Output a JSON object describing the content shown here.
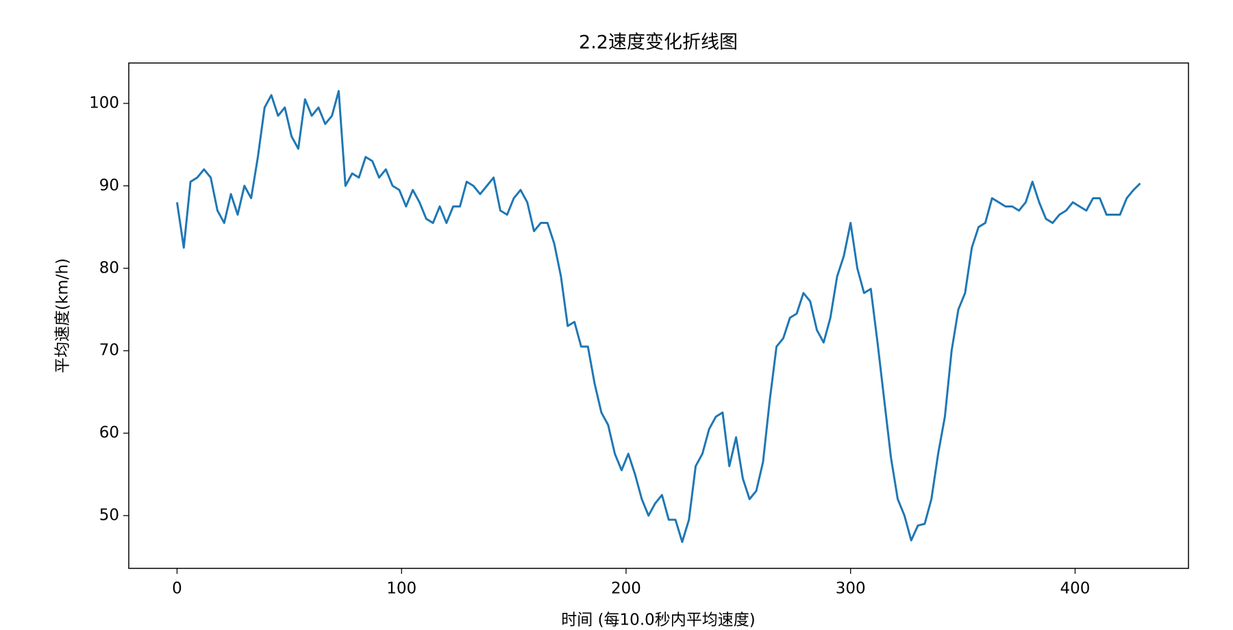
{
  "chart_data": {
    "type": "line",
    "title": "2.2速度变化折线图",
    "x_label": "时间 (每10.0秒内平均速度)",
    "y_label": "平均速度(km/h)",
    "color": "#1f77b4",
    "x": [
      0,
      3,
      6,
      9,
      12,
      15,
      18,
      21,
      24,
      27,
      30,
      33,
      36,
      39,
      42,
      45,
      48,
      51,
      54,
      57,
      60,
      63,
      66,
      69,
      72,
      75,
      78,
      81,
      84,
      87,
      90,
      93,
      96,
      99,
      102,
      105,
      108,
      111,
      114,
      117,
      120,
      123,
      126,
      129,
      132,
      135,
      138,
      141,
      144,
      147,
      150,
      153,
      156,
      159,
      162,
      165,
      168,
      171,
      174,
      177,
      180,
      183,
      186,
      189,
      192,
      195,
      198,
      201,
      204,
      207,
      210,
      213,
      216,
      219,
      222,
      225,
      228,
      231,
      234,
      237,
      240,
      243,
      246,
      249,
      252,
      255,
      258,
      261,
      264,
      267,
      270,
      273,
      276,
      279,
      282,
      285,
      288,
      291,
      294,
      297,
      300,
      303,
      306,
      309,
      312,
      315,
      318,
      321,
      324,
      327,
      330,
      333,
      336,
      339,
      342,
      345,
      348,
      351,
      354,
      357,
      360,
      363,
      366,
      369,
      372,
      375,
      378,
      381,
      384,
      387,
      390,
      393,
      396,
      399,
      402,
      405,
      408,
      411,
      414,
      417,
      420,
      423,
      426,
      429
    ],
    "values": [
      88,
      82.5,
      90.5,
      91,
      92,
      91,
      87,
      85.5,
      89,
      86.5,
      90,
      88.5,
      93.5,
      99.5,
      101,
      98.5,
      99.5,
      96,
      94.5,
      100.5,
      98.5,
      99.5,
      97.5,
      98.5,
      101.5,
      90,
      91.5,
      91,
      93.5,
      93,
      91,
      92,
      90,
      89.5,
      87.5,
      89.5,
      88,
      86,
      85.5,
      87.5,
      85.5,
      87.5,
      87.5,
      90.5,
      90,
      89,
      90,
      91,
      87,
      86.5,
      88.5,
      89.5,
      88,
      84.5,
      85.5,
      85.5,
      83,
      79,
      73,
      73.5,
      70.5,
      70.5,
      66,
      62.5,
      61,
      57.5,
      55.5,
      57.5,
      55,
      52,
      50,
      51.5,
      52.5,
      49.5,
      49.5,
      46.8,
      49.5,
      56,
      57.5,
      60.5,
      62,
      62.5,
      56,
      59.5,
      54.5,
      52,
      53,
      56.5,
      64,
      70.5,
      71.5,
      74,
      74.5,
      77,
      76,
      72.5,
      71,
      74,
      79,
      81.5,
      85.5,
      80,
      77,
      77.5,
      71,
      64,
      57,
      52,
      50,
      47,
      48.8,
      49,
      52,
      57.5,
      62,
      70,
      75,
      77,
      82.5,
      85,
      85.5,
      88.5,
      88,
      87.5,
      87.5,
      87,
      88,
      90.5,
      88,
      86,
      85.5,
      86.5,
      87,
      88,
      87.5,
      87,
      88.5,
      88.5,
      86.5,
      86.5,
      86.5,
      88.5,
      89.5,
      90.3
    ],
    "xlim": [
      -21.5,
      450.5
    ],
    "xticks": [
      0,
      100,
      200,
      300,
      400
    ],
    "ylim": [
      43.6,
      104.9
    ],
    "yticks": [
      50,
      60,
      70,
      80,
      90,
      100
    ]
  }
}
